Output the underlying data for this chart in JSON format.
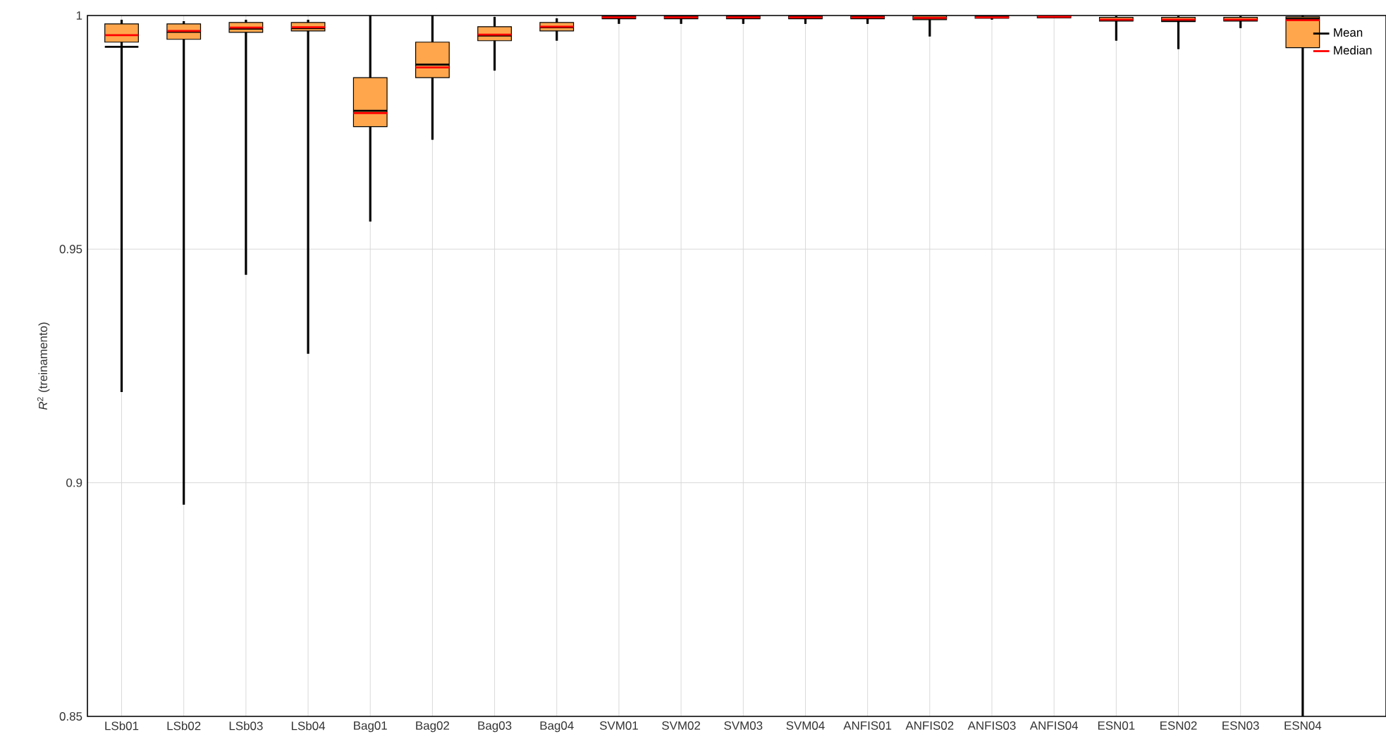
{
  "chart_data": {
    "type": "box",
    "ylabel": "*R*$^{2}$ (treinamento)",
    "categories": [
      "LSb01",
      "LSb02",
      "LSb03",
      "LSb04",
      "Bag01",
      "Bag02",
      "Bag03",
      "Bag04",
      "SVM01",
      "SVM02",
      "SVM03",
      "SVM04",
      "ANFIS01",
      "ANFIS02",
      "ANFIS03",
      "ANFIS04",
      "ESN01",
      "ESN02",
      "ESN03",
      "ESN04"
    ],
    "color": "#ffa64d",
    "series": [
      {
        "name": "Mean",
        "color": "#000000",
        "values": [
          null,
          null,
          null,
          null,
          null,
          null,
          null,
          null,
          null,
          null,
          null,
          null,
          null,
          null,
          null,
          null,
          null,
          null,
          null,
          null
        ]
      },
      {
        "name": "Median",
        "color": "#ff0000",
        "values": [
          null,
          null,
          null,
          null,
          null,
          null,
          null,
          null,
          null,
          null,
          null,
          null,
          null,
          null,
          null,
          null,
          null,
          null,
          null,
          null
        ]
      }
    ],
    "boxes": [
      {
        "low": 0.9194,
        "q1": 0.9943,
        "median": 0.9958,
        "q3": 0.9982,
        "high": 0.9991,
        "mean": 0.9933
      },
      {
        "low": 0.8953,
        "q1": 0.9949,
        "median": 0.9967,
        "q3": 0.9982,
        "high": 0.9988,
        "mean": 0.9965
      },
      {
        "low": 0.9445,
        "q1": 0.9964,
        "median": 0.9974,
        "q3": 0.9985,
        "high": 0.9991,
        "mean": 0.9972
      },
      {
        "low": 0.9276,
        "q1": 0.9967,
        "median": 0.9975,
        "q3": 0.9985,
        "high": 0.9991,
        "mean": 0.9973
      },
      {
        "low": 0.9559,
        "q1": 0.9762,
        "median": 0.9791,
        "q3": 0.9867,
        "high": 1.0,
        "mean": 0.9796
      },
      {
        "low": 0.9734,
        "q1": 0.9867,
        "median": 0.9889,
        "q3": 0.9943,
        "high": 1.0,
        "mean": 0.9895
      },
      {
        "low": 0.9882,
        "q1": 0.9946,
        "median": 0.9959,
        "q3": 0.9976,
        "high": 0.9997,
        "mean": 0.9957
      },
      {
        "low": 0.9946,
        "q1": 0.9967,
        "median": 0.9976,
        "q3": 0.9985,
        "high": 0.9994,
        "mean": 0.9975
      },
      {
        "low": 0.9982,
        "q1": 0.9993,
        "median": 0.9996,
        "q3": 0.9999,
        "high": 1.0,
        "mean": 0.9996
      },
      {
        "low": 0.9982,
        "q1": 0.9993,
        "median": 0.9996,
        "q3": 0.9999,
        "high": 1.0,
        "mean": 0.9996
      },
      {
        "low": 0.9982,
        "q1": 0.9993,
        "median": 0.9996,
        "q3": 0.9999,
        "high": 1.0,
        "mean": 0.9996
      },
      {
        "low": 0.9982,
        "q1": 0.9993,
        "median": 0.9996,
        "q3": 0.9999,
        "high": 1.0,
        "mean": 0.9996
      },
      {
        "low": 0.9982,
        "q1": 0.9993,
        "median": 0.9996,
        "q3": 0.9999,
        "high": 1.0,
        "mean": 0.9996
      },
      {
        "low": 0.9955,
        "q1": 0.9991,
        "median": 0.9995,
        "q3": 0.9999,
        "high": 1.0,
        "mean": 0.9994
      },
      {
        "low": 0.9991,
        "q1": 0.9994,
        "median": 0.9996,
        "q3": 0.9999,
        "high": 1.0,
        "mean": 0.9996
      },
      {
        "low": 0.9994,
        "q1": 0.9995,
        "median": 0.9997,
        "q3": 0.9999,
        "high": 1.0,
        "mean": 0.9997
      },
      {
        "low": 0.9946,
        "q1": 0.9988,
        "median": 0.9991,
        "q3": 0.9996,
        "high": 0.9999,
        "mean": 0.999
      },
      {
        "low": 0.9928,
        "q1": 0.9987,
        "median": 0.9991,
        "q3": 0.9996,
        "high": 0.9999,
        "mean": 0.9989
      },
      {
        "low": 0.9973,
        "q1": 0.9988,
        "median": 0.9991,
        "q3": 0.9996,
        "high": 0.9999,
        "mean": 0.999
      },
      {
        "low": 0.85,
        "q1": 0.9931,
        "median": 0.999,
        "q3": 0.9997,
        "high": 1.0,
        "mean": 0.9993
      }
    ],
    "ylim": [
      0.85,
      1
    ],
    "yticks": [
      0.85,
      0.9,
      0.95,
      1
    ],
    "grid": true,
    "legend": "top right"
  }
}
